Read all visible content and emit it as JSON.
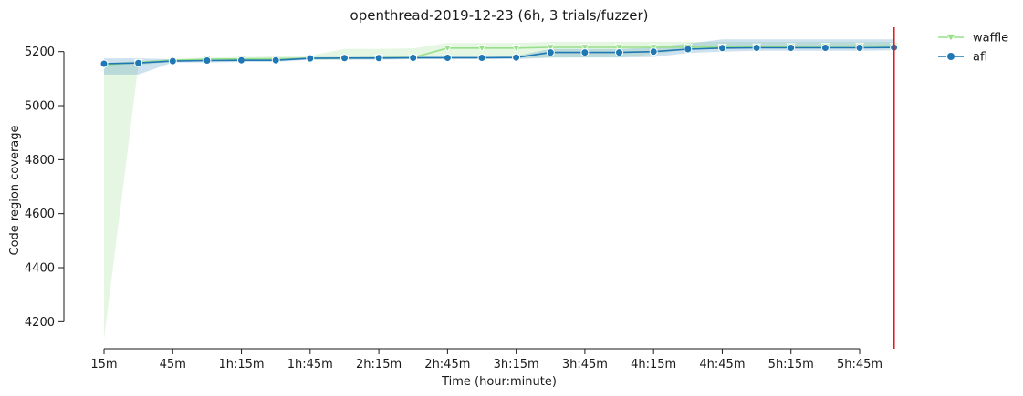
{
  "chart_data": {
    "type": "line",
    "title": "openthread-2019-12-23 (6h, 3 trials/fuzzer)",
    "xlabel": "Time (hour:minute)",
    "ylabel": "Code region coverage",
    "xlim": [
      15,
      375
    ],
    "ylim": [
      4100,
      5290
    ],
    "x_ticks": [
      {
        "value": 15,
        "label": "15m"
      },
      {
        "value": 45,
        "label": "45m"
      },
      {
        "value": 75,
        "label": "1h:15m"
      },
      {
        "value": 105,
        "label": "1h:45m"
      },
      {
        "value": 135,
        "label": "2h:15m"
      },
      {
        "value": 165,
        "label": "2h:45m"
      },
      {
        "value": 195,
        "label": "3h:15m"
      },
      {
        "value": 225,
        "label": "3h:45m"
      },
      {
        "value": 255,
        "label": "4h:15m"
      },
      {
        "value": 285,
        "label": "4h:45m"
      },
      {
        "value": 315,
        "label": "5h:15m"
      },
      {
        "value": 345,
        "label": "5h:45m"
      }
    ],
    "y_ticks": [
      4200,
      4400,
      4600,
      4800,
      5000,
      5200
    ],
    "x": [
      15,
      30,
      45,
      60,
      75,
      90,
      105,
      120,
      135,
      150,
      165,
      180,
      195,
      210,
      225,
      240,
      255,
      270,
      285,
      300,
      315,
      330,
      345,
      360
    ],
    "series": [
      {
        "name": "waffle",
        "marker": "triangle-down",
        "color": "#98df8a",
        "values": [
          5150,
          5160,
          5168,
          5172,
          5173,
          5174,
          5175,
          5176,
          5177,
          5178,
          5213,
          5213,
          5213,
          5216,
          5216,
          5216,
          5216,
          5217,
          5217,
          5218,
          5219,
          5220,
          5221,
          5221
        ],
        "band_low": [
          4135,
          5150,
          5162,
          5166,
          5168,
          5168,
          5170,
          5170,
          5172,
          5172,
          5175,
          5175,
          5176,
          5178,
          5179,
          5179,
          5190,
          5208,
          5210,
          5212,
          5213,
          5214,
          5215,
          5216
        ],
        "band_high": [
          5158,
          5165,
          5173,
          5178,
          5180,
          5182,
          5185,
          5210,
          5210,
          5212,
          5232,
          5232,
          5232,
          5236,
          5236,
          5236,
          5236,
          5236,
          5236,
          5236,
          5236,
          5236,
          5236,
          5236
        ]
      },
      {
        "name": "afl",
        "marker": "circle",
        "color": "#1f77b4",
        "values": [
          5155,
          5158,
          5165,
          5167,
          5168,
          5168,
          5175,
          5176,
          5176,
          5177,
          5177,
          5177,
          5178,
          5197,
          5197,
          5197,
          5200,
          5209,
          5213,
          5214,
          5214,
          5214,
          5214,
          5215
        ],
        "band_low": [
          5115,
          5115,
          5160,
          5160,
          5162,
          5162,
          5170,
          5170,
          5170,
          5172,
          5172,
          5172,
          5172,
          5178,
          5178,
          5178,
          5180,
          5195,
          5200,
          5203,
          5203,
          5203,
          5203,
          5205
        ],
        "band_high": [
          5175,
          5175,
          5172,
          5172,
          5174,
          5174,
          5180,
          5180,
          5182,
          5182,
          5182,
          5182,
          5184,
          5210,
          5210,
          5210,
          5215,
          5230,
          5245,
          5245,
          5245,
          5245,
          5245,
          5245
        ]
      }
    ],
    "vertical_line": {
      "x": 360,
      "color": "#e31a1c"
    },
    "legend": {
      "placement": "top-right-outside",
      "entries": [
        "waffle",
        "afl"
      ]
    }
  }
}
